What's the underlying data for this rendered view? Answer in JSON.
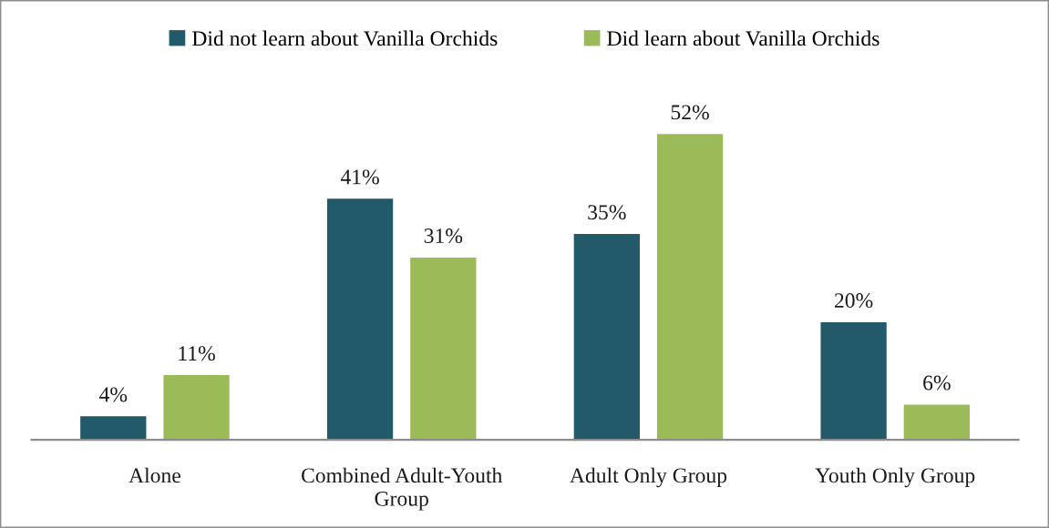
{
  "chart_data": {
    "type": "bar",
    "categories": [
      "Alone",
      "Combined Adult-Youth\nGroup",
      "Adult Only Group",
      "Youth Only Group"
    ],
    "series": [
      {
        "name": "Did not learn about Vanilla Orchids",
        "color": "#235a69",
        "values": [
          4,
          41,
          35,
          20
        ],
        "value_labels": [
          "4%",
          "41%",
          "35%",
          "20%"
        ]
      },
      {
        "name": "Did learn about Vanilla Orchids",
        "color": "#9bbb59",
        "values": [
          11,
          31,
          52,
          6
        ],
        "value_labels": [
          "11%",
          "31%",
          "52%",
          "6%"
        ]
      }
    ],
    "legend": "top",
    "grid": false,
    "tick_labels": "x"
  }
}
